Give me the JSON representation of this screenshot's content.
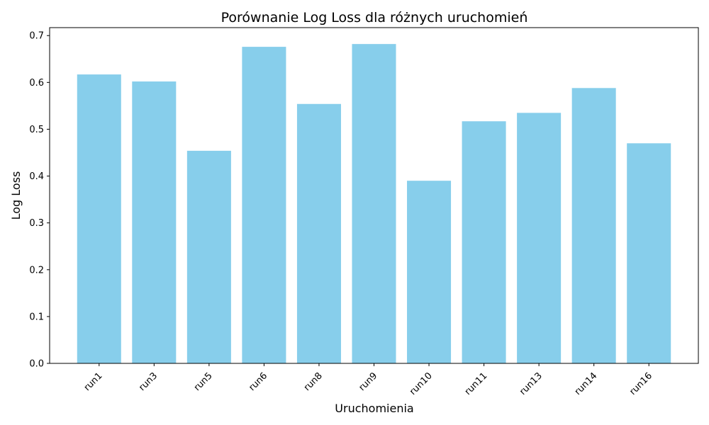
{
  "chart_data": {
    "type": "bar",
    "title": "Porównanie Log Loss dla różnych uruchomień",
    "xlabel": "Uruchomienia",
    "ylabel": "Log Loss",
    "categories": [
      "run1",
      "run3",
      "run5",
      "run6",
      "run8",
      "run9",
      "run10",
      "run11",
      "run13",
      "run14",
      "run16"
    ],
    "values": [
      0.617,
      0.602,
      0.454,
      0.676,
      0.554,
      0.682,
      0.39,
      0.517,
      0.535,
      0.588,
      0.47
    ],
    "ylim": [
      0,
      0.717
    ],
    "yticks": [
      0.0,
      0.1,
      0.2,
      0.3,
      0.4,
      0.5,
      0.6,
      0.7
    ],
    "ytick_labels": [
      "0.0",
      "0.1",
      "0.2",
      "0.3",
      "0.4",
      "0.5",
      "0.6",
      "0.7"
    ],
    "bar_color": "#87ceeb",
    "grid": false,
    "legend": "none"
  }
}
